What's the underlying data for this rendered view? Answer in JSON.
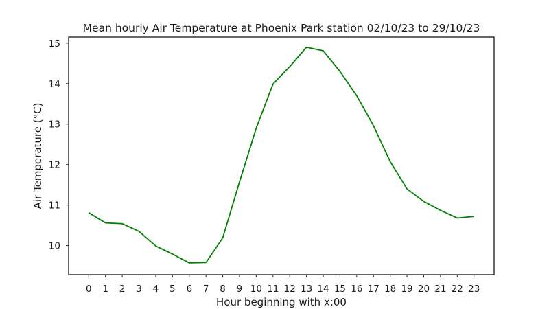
{
  "chart_data": {
    "type": "line",
    "title": "Mean hourly Air Temperature at Phoenix Park station 02/10/23 to 29/10/23",
    "xlabel": "Hour beginning with x:00",
    "ylabel": "Air Temperature (°C)",
    "x": [
      0,
      1,
      2,
      3,
      4,
      5,
      6,
      7,
      8,
      9,
      10,
      11,
      12,
      13,
      14,
      15,
      16,
      17,
      18,
      19,
      20,
      21,
      22,
      23
    ],
    "xticks": [
      "0",
      "1",
      "2",
      "3",
      "4",
      "5",
      "6",
      "7",
      "8",
      "9",
      "10",
      "11",
      "12",
      "13",
      "14",
      "15",
      "16",
      "17",
      "18",
      "19",
      "20",
      "21",
      "22",
      "23"
    ],
    "yticks": [
      10,
      11,
      12,
      13,
      14,
      15
    ],
    "ylim": [
      9.28,
      15.15
    ],
    "xlim": [
      -1.2,
      24.2
    ],
    "grid": false,
    "series": [
      {
        "color": "#008000",
        "values": [
          10.81,
          10.56,
          10.54,
          10.35,
          9.99,
          9.79,
          9.57,
          9.58,
          10.19,
          11.57,
          12.9,
          13.99,
          14.42,
          14.9,
          14.81,
          14.3,
          13.7,
          12.96,
          12.07,
          11.4,
          11.09,
          10.87,
          10.68,
          10.72
        ]
      }
    ]
  }
}
